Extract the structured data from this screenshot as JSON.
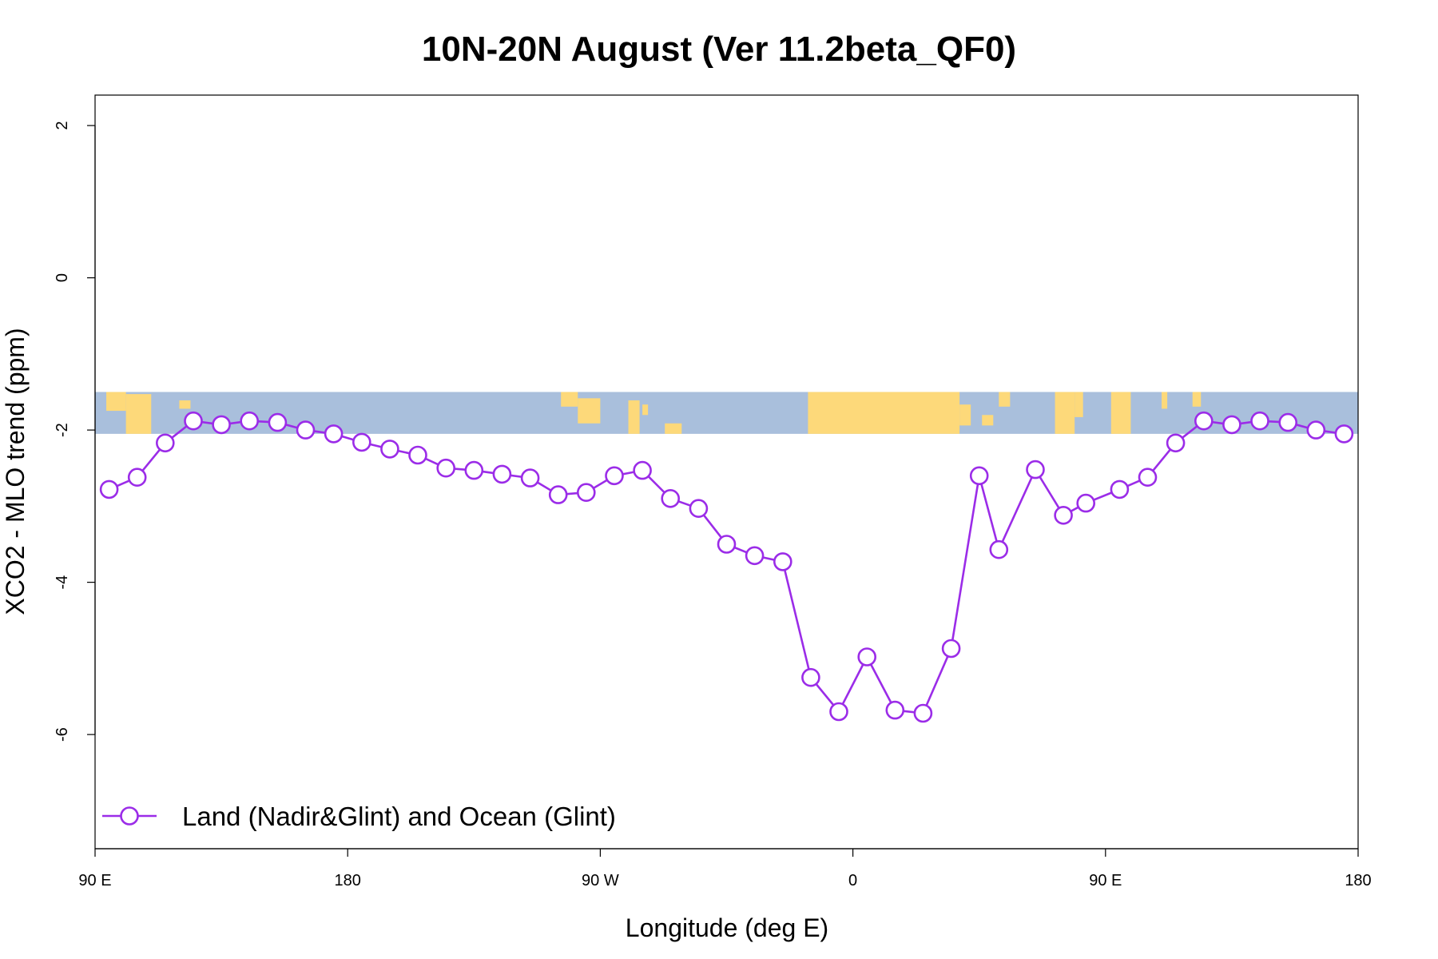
{
  "colors": {
    "series": "#9b2ce8",
    "ocean": "#a9bfdc",
    "land": "#fdd97a",
    "axis": "#000000",
    "background": "#ffffff"
  },
  "chart_data": {
    "type": "line",
    "title": "10N-20N August (Ver 11.2beta_QF0)",
    "xlabel": "Longitude (deg E)",
    "ylabel": "XCO2 - MLO trend (ppm)",
    "x_ticks": [
      {
        "lon": 90,
        "label": "90 E"
      },
      {
        "lon": 180,
        "label": "180"
      },
      {
        "lon": 270,
        "label": "90 W"
      },
      {
        "lon": 360,
        "label": "0"
      },
      {
        "lon": 450,
        "label": "90 E"
      },
      {
        "lon": 540,
        "label": "180"
      }
    ],
    "x_range": [
      "90 E",
      "180"
    ],
    "y_ticks": [
      2,
      0,
      -2,
      -4,
      -6
    ],
    "ylim": [
      -7.5,
      2.4
    ],
    "grid": false,
    "legend_position": "bottom-left",
    "map_strip": {
      "description": "land/ocean map strip for 10N-20N",
      "y_top": -1.5,
      "y_bottom": -2.05
    },
    "series": [
      {
        "name": "Land (Nadir&Glint) and Ocean (Glint)",
        "marker": "open-circle",
        "points": [
          {
            "x": "95 E",
            "y": -2.78
          },
          {
            "x": "105 E",
            "y": -2.62
          },
          {
            "x": "115 E",
            "y": -2.17
          },
          {
            "x": "125 E",
            "y": -1.88
          },
          {
            "x": "135 E",
            "y": -1.93
          },
          {
            "x": "145 E",
            "y": -1.88
          },
          {
            "x": "155 E",
            "y": -1.9
          },
          {
            "x": "165 E",
            "y": -2.0
          },
          {
            "x": "175 E",
            "y": -2.05
          },
          {
            "x": "175 W",
            "y": -2.16
          },
          {
            "x": "165 W",
            "y": -2.25
          },
          {
            "x": "155 W",
            "y": -2.33
          },
          {
            "x": "145 W",
            "y": -2.5
          },
          {
            "x": "135 W",
            "y": -2.53
          },
          {
            "x": "125 W",
            "y": -2.58
          },
          {
            "x": "115 W",
            "y": -2.63
          },
          {
            "x": "105 W",
            "y": -2.85
          },
          {
            "x": "95 W",
            "y": -2.82
          },
          {
            "x": "85 W",
            "y": -2.6
          },
          {
            "x": "75 W",
            "y": -2.53
          },
          {
            "x": "65 W",
            "y": -2.9
          },
          {
            "x": "55 W",
            "y": -3.03
          },
          {
            "x": "45 W",
            "y": -3.5
          },
          {
            "x": "35 W",
            "y": -3.65
          },
          {
            "x": "25 W",
            "y": -3.73
          },
          {
            "x": "15 W",
            "y": -5.25
          },
          {
            "x": "5 W",
            "y": -5.7
          },
          {
            "x": "5 E",
            "y": -4.98
          },
          {
            "x": "15 E",
            "y": -5.68
          },
          {
            "x": "25 E",
            "y": -5.72
          },
          {
            "x": "35 E",
            "y": -4.87
          },
          {
            "x": "45 E",
            "y": -2.6
          },
          {
            "x": "52 E",
            "y": -3.57
          },
          {
            "x": "65 E",
            "y": -2.52
          },
          {
            "x": "75 E",
            "y": -3.12
          },
          {
            "x": "83 E",
            "y": -2.96
          },
          {
            "x": "95 E",
            "y": -2.78
          },
          {
            "x": "105 E",
            "y": -2.62
          },
          {
            "x": "115 E",
            "y": -2.17
          },
          {
            "x": "125 E",
            "y": -1.88
          },
          {
            "x": "135 E",
            "y": -1.93
          },
          {
            "x": "145 E",
            "y": -1.88
          },
          {
            "x": "155 E",
            "y": -1.9
          },
          {
            "x": "165 E",
            "y": -2.0
          },
          {
            "x": "175 E",
            "y": -2.05
          }
        ]
      }
    ]
  }
}
